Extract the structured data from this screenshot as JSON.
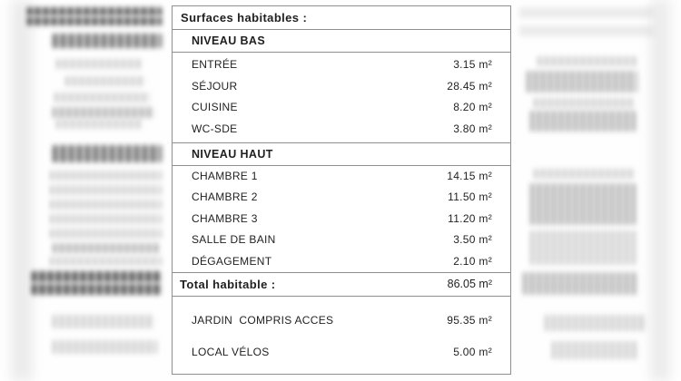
{
  "table": {
    "title": "Surfaces habitables :",
    "sections": [
      {
        "header": "NIVEAU BAS",
        "rows": [
          {
            "label": "ENTRÉE",
            "value": "3.15 m²"
          },
          {
            "label": "SÉJOUR",
            "value": "28.45 m²"
          },
          {
            "label": "CUISINE",
            "value": "8.20 m²"
          },
          {
            "label": "WC-SDE",
            "value": "3.80 m²"
          }
        ]
      },
      {
        "header": "NIVEAU HAUT",
        "rows": [
          {
            "label": "CHAMBRE 1",
            "value": "14.15 m²"
          },
          {
            "label": "CHAMBRE 2",
            "value": "11.50 m²"
          },
          {
            "label": "CHAMBRE 3",
            "value": "11.20 m²"
          },
          {
            "label": "SALLE DE BAIN",
            "value": "3.50 m²"
          },
          {
            "label": "DÉGAGEMENT",
            "value": "2.10 m²"
          }
        ]
      }
    ],
    "total": {
      "label": "Total habitable :",
      "value": "86.05 m²"
    },
    "annex": [
      {
        "label": "JARDIN  COMPRIS ACCES",
        "value": "95.35 m²"
      },
      {
        "label": "LOCAL VÉLOS",
        "value": "5.00 m²"
      }
    ],
    "colors": {
      "text": "#1f1f1f",
      "border": "#8f8f8f",
      "background": "#ffffff"
    }
  }
}
